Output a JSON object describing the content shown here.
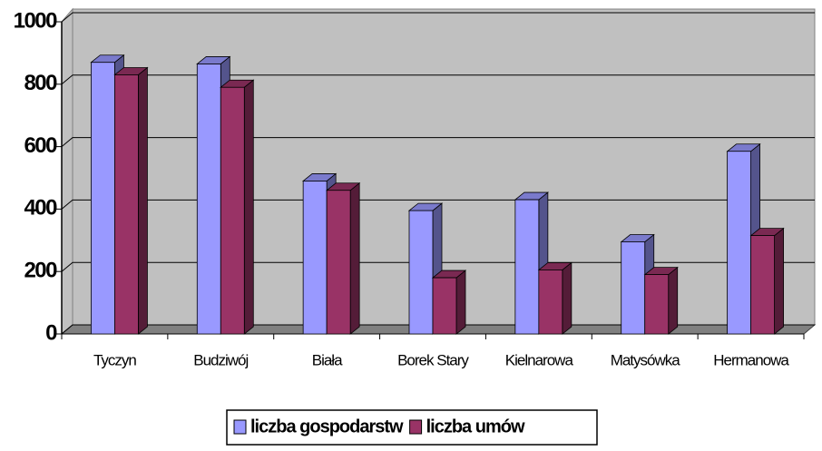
{
  "chart_data": {
    "type": "bar",
    "categories": [
      "Tyczyn",
      "Budziwój",
      "Biała",
      "Borek Stary",
      "Kielnarowa",
      "Matysówka",
      "Hermanowa"
    ],
    "series": [
      {
        "name": "liczba gospodarstw",
        "color": "#9999ff",
        "values": [
          870,
          865,
          490,
          395,
          430,
          295,
          585
        ]
      },
      {
        "name": "liczba umów",
        "color": "#993366",
        "values": [
          830,
          790,
          460,
          180,
          205,
          190,
          315
        ]
      }
    ],
    "ylim": [
      0,
      1000
    ],
    "yticks": [
      0,
      200,
      400,
      600,
      800,
      1000
    ],
    "grid": true,
    "legend": "bottom"
  }
}
